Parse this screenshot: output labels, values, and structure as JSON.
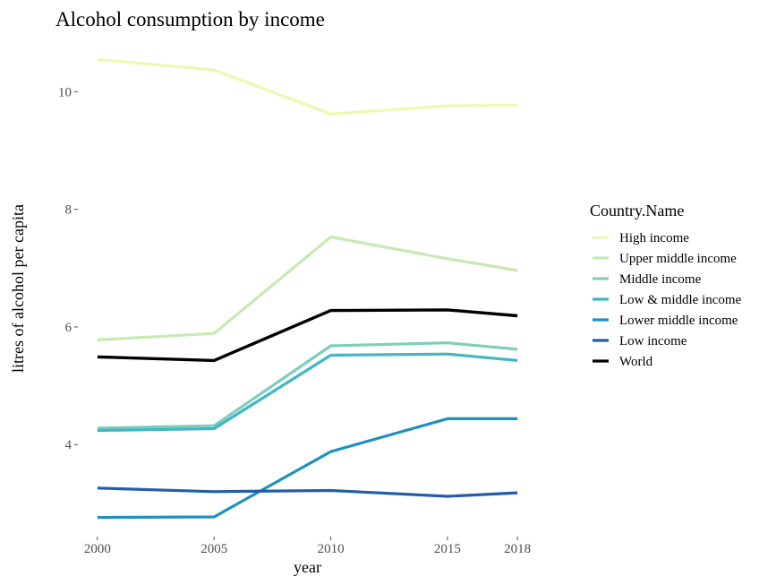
{
  "chart_data": {
    "type": "line",
    "title": "Alcohol consumption by income",
    "xlabel": "year",
    "ylabel": "litres of alcohol per capita",
    "x": [
      2000,
      2005,
      2010,
      2015,
      2018
    ],
    "x_tick_labels": [
      "2000",
      "2005",
      "2010",
      "2015",
      "2018"
    ],
    "y_ticks": [
      4,
      6,
      8,
      10
    ],
    "y_tick_labels": [
      "4",
      "6",
      "8",
      "10"
    ],
    "xlim": [
      1999.2,
      2018.8
    ],
    "ylim": [
      2.45,
      10.95
    ],
    "grid": false,
    "legend": {
      "title": "Country.Name",
      "placement": "right"
    },
    "series": [
      {
        "name": "High income",
        "color": "#edf8b1",
        "values": [
          10.55,
          10.37,
          9.62,
          9.76,
          9.77
        ]
      },
      {
        "name": "Upper middle income",
        "color": "#c7e9b4",
        "values": [
          5.78,
          5.89,
          7.53,
          7.16,
          6.96
        ]
      },
      {
        "name": "Middle income",
        "color": "#7fcdbb",
        "values": [
          4.28,
          4.32,
          5.68,
          5.73,
          5.62
        ]
      },
      {
        "name": "Low & middle income",
        "color": "#41b6c4",
        "values": [
          4.24,
          4.27,
          5.52,
          5.54,
          5.43
        ]
      },
      {
        "name": "Lower middle income",
        "color": "#1d91c0",
        "values": [
          2.76,
          2.77,
          3.88,
          4.44,
          4.44
        ]
      },
      {
        "name": "Low income",
        "color": "#225ea8",
        "values": [
          3.26,
          3.2,
          3.22,
          3.12,
          3.18
        ]
      },
      {
        "name": "World",
        "color": "#000000",
        "values": [
          5.49,
          5.43,
          6.28,
          6.29,
          6.19
        ]
      }
    ]
  }
}
